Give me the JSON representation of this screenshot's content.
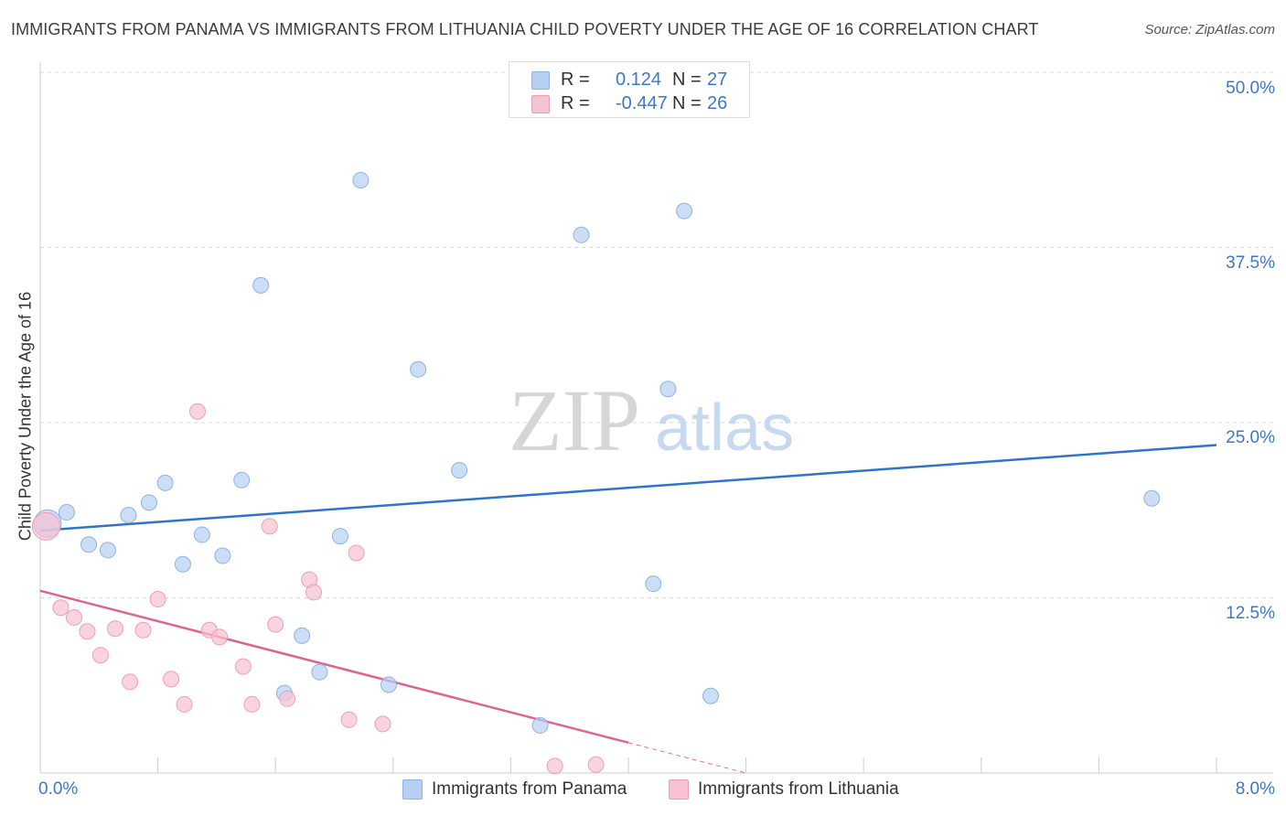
{
  "header": {
    "title": "IMMIGRANTS FROM PANAMA VS IMMIGRANTS FROM LITHUANIA CHILD POVERTY UNDER THE AGE OF 16 CORRELATION CHART",
    "source": "Source: ZipAtlas.com"
  },
  "legend": {
    "panama": {
      "r_label": "R =",
      "r_value": "0.124",
      "n_label": "N =",
      "n_value": "27"
    },
    "lithuania": {
      "r_label": "R =",
      "r_value": "-0.447",
      "n_label": "N =",
      "n_value": "26"
    }
  },
  "watermark": {
    "zip": "ZIP",
    "atlas": "atlas"
  },
  "colors": {
    "panama_fill": "#b7cff2",
    "panama_stroke": "#8db3e6",
    "panama_line": "#2f74cc",
    "lithuania_fill": "#f7c2d2",
    "lithuania_stroke": "#ef9db6",
    "lithuania_line": "#e0628f",
    "tick_text": "#3c78c8",
    "grid": "#d9d9d9"
  },
  "chart_data": {
    "type": "scatter",
    "title": "IMMIGRANTS FROM PANAMA VS IMMIGRANTS FROM LITHUANIA CHILD POVERTY UNDER THE AGE OF 16 CORRELATION CHART",
    "xlabel": "",
    "ylabel": "Child Poverty Under the Age of 16",
    "xlim": [
      0,
      8
    ],
    "ylim": [
      0,
      50
    ],
    "x_tick_labels": [
      "0.0%",
      "8.0%"
    ],
    "y_ticks": [
      12.5,
      25.0,
      37.5,
      50.0
    ],
    "y_tick_labels": [
      "12.5%",
      "25.0%",
      "37.5%",
      "50.0%"
    ],
    "grid": true,
    "series": [
      {
        "name": "Immigrants from Panama",
        "r": 0.124,
        "n": 27,
        "trend": {
          "x": [
            0,
            8
          ],
          "y": [
            17.3,
            23.4
          ]
        },
        "points": [
          {
            "x": 0.05,
            "y": 17.8,
            "big": true
          },
          {
            "x": 0.18,
            "y": 18.6
          },
          {
            "x": 0.33,
            "y": 16.3
          },
          {
            "x": 0.46,
            "y": 15.9
          },
          {
            "x": 0.6,
            "y": 18.4
          },
          {
            "x": 0.74,
            "y": 19.3
          },
          {
            "x": 0.85,
            "y": 20.7
          },
          {
            "x": 0.97,
            "y": 14.9
          },
          {
            "x": 1.1,
            "y": 17.0
          },
          {
            "x": 1.24,
            "y": 15.5
          },
          {
            "x": 1.37,
            "y": 20.9
          },
          {
            "x": 1.5,
            "y": 34.8
          },
          {
            "x": 1.66,
            "y": 5.7
          },
          {
            "x": 1.78,
            "y": 9.8
          },
          {
            "x": 1.9,
            "y": 7.2
          },
          {
            "x": 2.04,
            "y": 16.9
          },
          {
            "x": 2.18,
            "y": 42.3
          },
          {
            "x": 2.37,
            "y": 6.3
          },
          {
            "x": 2.57,
            "y": 28.8
          },
          {
            "x": 2.85,
            "y": 21.6
          },
          {
            "x": 3.4,
            "y": 3.4
          },
          {
            "x": 3.68,
            "y": 38.4
          },
          {
            "x": 4.17,
            "y": 13.5
          },
          {
            "x": 4.27,
            "y": 27.4
          },
          {
            "x": 4.38,
            "y": 40.1
          },
          {
            "x": 4.56,
            "y": 5.5
          },
          {
            "x": 7.56,
            "y": 19.6
          }
        ]
      },
      {
        "name": "Immigrants from Lithuania",
        "r": -0.447,
        "n": 26,
        "trend": {
          "x": [
            0,
            4.8
          ],
          "y": [
            13.0,
            0.0
          ],
          "solid_to_x": 4.0
        },
        "points": [
          {
            "x": 0.04,
            "y": 17.6,
            "big": true
          },
          {
            "x": 0.14,
            "y": 11.8
          },
          {
            "x": 0.23,
            "y": 11.1
          },
          {
            "x": 0.32,
            "y": 10.1
          },
          {
            "x": 0.41,
            "y": 8.4
          },
          {
            "x": 0.51,
            "y": 10.3
          },
          {
            "x": 0.61,
            "y": 6.5
          },
          {
            "x": 0.7,
            "y": 10.2
          },
          {
            "x": 0.8,
            "y": 12.4
          },
          {
            "x": 0.89,
            "y": 6.7
          },
          {
            "x": 0.98,
            "y": 4.9
          },
          {
            "x": 1.07,
            "y": 25.8
          },
          {
            "x": 1.15,
            "y": 10.2
          },
          {
            "x": 1.22,
            "y": 9.7
          },
          {
            "x": 1.38,
            "y": 7.6
          },
          {
            "x": 1.44,
            "y": 4.9
          },
          {
            "x": 1.56,
            "y": 17.6
          },
          {
            "x": 1.6,
            "y": 10.6
          },
          {
            "x": 1.68,
            "y": 5.3
          },
          {
            "x": 1.83,
            "y": 13.8
          },
          {
            "x": 1.86,
            "y": 12.9
          },
          {
            "x": 2.1,
            "y": 3.8
          },
          {
            "x": 2.15,
            "y": 15.7
          },
          {
            "x": 2.33,
            "y": 3.5
          },
          {
            "x": 3.5,
            "y": 0.5
          },
          {
            "x": 3.78,
            "y": 0.6
          }
        ]
      }
    ]
  },
  "bottom_legend": {
    "panama_label": "Immigrants from Panama",
    "lithuania_label": "Immigrants from Lithuania"
  }
}
